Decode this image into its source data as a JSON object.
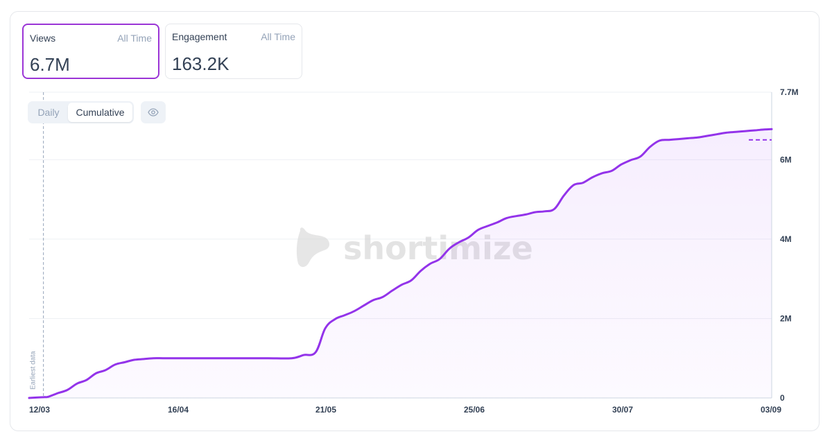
{
  "metrics": {
    "views": {
      "label": "Views",
      "range": "All Time",
      "value": "6.7M"
    },
    "engagement": {
      "label": "Engagement",
      "range": "All Time",
      "value": "163.2K"
    }
  },
  "toggle": {
    "daily": "Daily",
    "cumulative": "Cumulative",
    "selected": "Cumulative"
  },
  "eye_icon": "eye-icon",
  "watermark": "shortimize",
  "earliest_label": "Earliest data",
  "colors": {
    "line": "#9333ea",
    "accent": "#9b35d6",
    "grid": "#eef0f4",
    "axis": "#cbd5e1"
  },
  "chart_data": {
    "type": "line",
    "x_tick_labels": [
      "12/03",
      "16/04",
      "21/05",
      "25/06",
      "30/07",
      "03/09"
    ],
    "y_tick_labels": [
      "0",
      "2M",
      "4M",
      "6M",
      "7.7M"
    ],
    "ylim": [
      0,
      7700000
    ],
    "earliest_data_day": 6,
    "dashed_reference_value": 6500000,
    "x_days": [
      0,
      6,
      8,
      12,
      16,
      20,
      24,
      28,
      32,
      36,
      40,
      44,
      48,
      52,
      56,
      60,
      70,
      80,
      90,
      100,
      110,
      115,
      120,
      124,
      128,
      132,
      136,
      140,
      144,
      148,
      152,
      156,
      160,
      164,
      168,
      172,
      176,
      180,
      184,
      188,
      192,
      196,
      200,
      204,
      208,
      212,
      216,
      220,
      224,
      228,
      232,
      236,
      240,
      244,
      248,
      252,
      256,
      260,
      264,
      268,
      272,
      276,
      280,
      284,
      288,
      292,
      296,
      300,
      304,
      308,
      311
    ],
    "values": [
      0,
      20000,
      30000,
      120000,
      200000,
      360000,
      450000,
      620000,
      700000,
      840000,
      900000,
      960000,
      980000,
      1000000,
      1000000,
      1000000,
      1000000,
      1000000,
      1000000,
      1000000,
      1000000,
      1080000,
      1150000,
      1750000,
      1980000,
      2080000,
      2180000,
      2320000,
      2460000,
      2540000,
      2700000,
      2850000,
      2960000,
      3200000,
      3380000,
      3500000,
      3760000,
      3920000,
      4040000,
      4230000,
      4330000,
      4420000,
      4530000,
      4580000,
      4620000,
      4680000,
      4700000,
      4760000,
      5100000,
      5360000,
      5420000,
      5560000,
      5660000,
      5720000,
      5880000,
      5990000,
      6080000,
      6320000,
      6480000,
      6500000,
      6520000,
      6540000,
      6560000,
      6600000,
      6640000,
      6680000,
      6700000,
      6720000,
      6740000,
      6760000,
      6770000
    ]
  }
}
